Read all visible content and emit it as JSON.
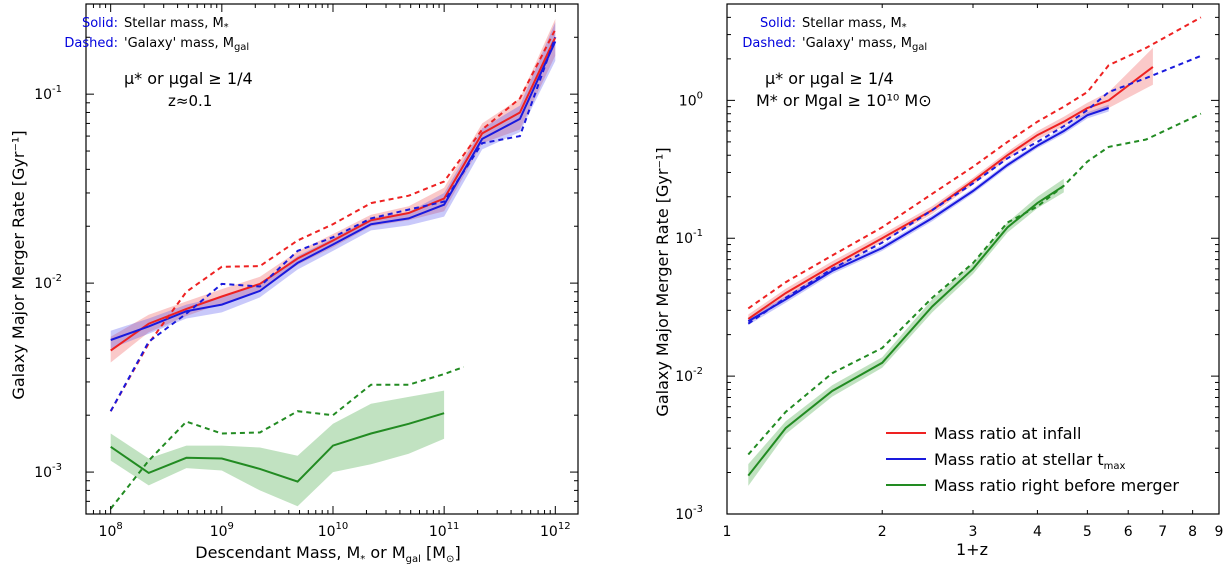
{
  "chart_data": [
    {
      "type": "line",
      "xscale": "log",
      "yscale": "log",
      "xlim": [
        60000000.0,
        1600000000000.0
      ],
      "ylim": [
        0.0006,
        0.3
      ],
      "xlabel_text": "Descendant Mass, M",
      "xlabel_parts": [
        "*",
        " or M",
        "gal",
        " [M",
        "⊙",
        "]"
      ],
      "ylabel": "Galaxy Major Merger Rate [Gyr⁻¹]",
      "x_ticks": [
        {
          "base": "10",
          "exp": "8",
          "v": 100000000.0
        },
        {
          "base": "10",
          "exp": "9",
          "v": 1000000000.0
        },
        {
          "base": "10",
          "exp": "10",
          "v": 10000000000.0
        },
        {
          "base": "10",
          "exp": "11",
          "v": 100000000000.0
        },
        {
          "base": "10",
          "exp": "12",
          "v": 1000000000000.0
        }
      ],
      "y_ticks": [
        {
          "base": "10",
          "exp": "-3",
          "v": 0.001
        },
        {
          "base": "10",
          "exp": "-2",
          "v": 0.01
        },
        {
          "base": "10",
          "exp": "-1",
          "v": 0.1
        }
      ],
      "annotations": {
        "solid_key": "Solid:",
        "solid_text": "Stellar mass, M",
        "solid_sub": "*",
        "dashed_key": "Dashed:",
        "dashed_text": "'Galaxy' mass, M",
        "dashed_sub": "gal",
        "cond_line1": "μ* or μgal ≥ 1/4",
        "cond_line2": "z≈0.1"
      },
      "series": [
        {
          "color": "red",
          "style": "solid",
          "x": [
            100000000.0,
            220000000.0,
            480000000.0,
            1000000000.0,
            2200000000.0,
            4800000000.0,
            10000000000.0,
            22000000000.0,
            48000000000.0,
            100000000000.0,
            220000000000.0,
            480000000000.0,
            1000000000000.0
          ],
          "y": [
            0.0044,
            0.0061,
            0.0073,
            0.0085,
            0.0099,
            0.0135,
            0.0168,
            0.0215,
            0.0235,
            0.028,
            0.062,
            0.08,
            0.2
          ],
          "band_low": [
            0.0038,
            0.0055,
            0.0067,
            0.0078,
            0.0091,
            0.0125,
            0.0155,
            0.02,
            0.0215,
            0.024,
            0.055,
            0.065,
            0.16
          ],
          "band_high": [
            0.0052,
            0.0068,
            0.008,
            0.0093,
            0.0108,
            0.0147,
            0.0182,
            0.023,
            0.0255,
            0.032,
            0.07,
            0.095,
            0.25
          ]
        },
        {
          "color": "blue",
          "style": "solid",
          "x": [
            100000000.0,
            220000000.0,
            480000000.0,
            1000000000.0,
            2200000000.0,
            4800000000.0,
            10000000000.0,
            22000000000.0,
            48000000000.0,
            100000000000.0,
            220000000000.0,
            480000000000.0,
            1000000000000.0
          ],
          "y": [
            0.005,
            0.0059,
            0.0071,
            0.0077,
            0.0091,
            0.0128,
            0.016,
            0.0205,
            0.022,
            0.026,
            0.058,
            0.074,
            0.19
          ],
          "band_low": [
            0.0045,
            0.0054,
            0.0065,
            0.007,
            0.0084,
            0.0118,
            0.0148,
            0.019,
            0.0202,
            0.0225,
            0.051,
            0.063,
            0.15
          ],
          "band_high": [
            0.0056,
            0.0065,
            0.0077,
            0.0085,
            0.0099,
            0.0139,
            0.0173,
            0.0221,
            0.0238,
            0.03,
            0.066,
            0.087,
            0.24
          ]
        },
        {
          "color": "red",
          "style": "dashed",
          "x": [
            100000000.0,
            220000000.0,
            480000000.0,
            1000000000.0,
            2200000000.0,
            4800000000.0,
            10000000000.0,
            22000000000.0,
            48000000000.0,
            100000000000.0,
            220000000000.0,
            480000000000.0,
            1000000000000.0
          ],
          "y": [
            0.0021,
            0.0048,
            0.009,
            0.0122,
            0.0123,
            0.0168,
            0.0205,
            0.0265,
            0.029,
            0.0345,
            0.065,
            0.095,
            0.22
          ]
        },
        {
          "color": "blue",
          "style": "dashed",
          "x": [
            100000000.0,
            220000000.0,
            480000000.0,
            1000000000.0,
            2200000000.0,
            4800000000.0,
            10000000000.0,
            22000000000.0,
            48000000000.0,
            100000000000.0,
            220000000000.0,
            480000000000.0,
            1000000000000.0
          ],
          "y": [
            0.0021,
            0.0049,
            0.0069,
            0.0099,
            0.0096,
            0.0148,
            0.0175,
            0.022,
            0.0245,
            0.027,
            0.055,
            0.06,
            0.2
          ]
        },
        {
          "color": "green",
          "style": "solid",
          "x": [
            100000000.0,
            220000000.0,
            480000000.0,
            1000000000.0,
            2200000000.0,
            4800000000.0,
            10000000000.0,
            22000000000.0,
            48000000000.0,
            100000000000.0
          ],
          "y": [
            0.00136,
            0.00099,
            0.00119,
            0.00118,
            0.00104,
            0.00089,
            0.00138,
            0.0016,
            0.0018,
            0.00205
          ],
          "band_low": [
            0.00115,
            0.00085,
            0.00105,
            0.00102,
            0.0008,
            0.00066,
            0.001,
            0.0011,
            0.00125,
            0.0015
          ],
          "band_high": [
            0.0016,
            0.00118,
            0.00138,
            0.00138,
            0.00135,
            0.00122,
            0.0018,
            0.0023,
            0.0025,
            0.0027
          ]
        },
        {
          "color": "green",
          "style": "dashed",
          "x": [
            100000000.0,
            220000000.0,
            480000000.0,
            1000000000.0,
            2200000000.0,
            4800000000.0,
            10000000000.0,
            22000000000.0,
            48000000000.0,
            100000000000.0,
            150000000000.0
          ],
          "y": [
            0.00064,
            0.00115,
            0.00185,
            0.0016,
            0.00162,
            0.0021,
            0.002,
            0.0029,
            0.0029,
            0.0033,
            0.0036
          ]
        }
      ]
    },
    {
      "type": "line",
      "xscale": "log",
      "yscale": "log",
      "xlim": [
        1,
        9
      ],
      "ylim": [
        0.001,
        5
      ],
      "xlabel": "1+z",
      "ylabel": "Galaxy Major Merger Rate [Gyr⁻¹]",
      "x_ticks": [
        {
          "label": "1",
          "v": 1
        },
        {
          "label": "2",
          "v": 2
        },
        {
          "label": "3",
          "v": 3
        },
        {
          "label": "4",
          "v": 4
        },
        {
          "label": "5",
          "v": 5
        },
        {
          "label": "6",
          "v": 6
        },
        {
          "label": "7",
          "v": 7
        },
        {
          "label": "8",
          "v": 8
        },
        {
          "label": "9",
          "v": 9
        }
      ],
      "y_ticks": [
        {
          "base": "10",
          "exp": "-3",
          "v": 0.001
        },
        {
          "base": "10",
          "exp": "-2",
          "v": 0.01
        },
        {
          "base": "10",
          "exp": "-1",
          "v": 0.1
        },
        {
          "base": "10",
          "exp": "0",
          "v": 1
        }
      ],
      "annotations": {
        "solid_key": "Solid:",
        "solid_text": "Stellar mass, M",
        "solid_sub": "*",
        "dashed_key": "Dashed:",
        "dashed_text": "'Galaxy' mass, M",
        "dashed_sub": "gal",
        "cond_line1": "μ* or μgal ≥ 1/4",
        "cond_line2": "M* or Mgal ≥ 10¹⁰ M⊙"
      },
      "legend": [
        {
          "label": "Mass ratio at infall",
          "color": "red"
        },
        {
          "label": "Mass ratio at stellar t",
          "sub": "max",
          "color": "blue"
        },
        {
          "label": "Mass ratio right before merger",
          "color": "green"
        }
      ],
      "legend_position": "lower-right",
      "series": [
        {
          "color": "red",
          "style": "solid",
          "x": [
            1.1,
            1.3,
            1.6,
            2.0,
            2.5,
            3.0,
            3.5,
            4.0,
            4.5,
            5.0,
            5.5,
            6.7
          ],
          "y": [
            0.026,
            0.04,
            0.063,
            0.1,
            0.16,
            0.26,
            0.4,
            0.56,
            0.7,
            0.88,
            1.0,
            1.75
          ],
          "band_low": [
            0.024,
            0.037,
            0.058,
            0.094,
            0.15,
            0.245,
            0.375,
            0.52,
            0.65,
            0.8,
            0.88,
            1.3
          ],
          "band_high": [
            0.028,
            0.043,
            0.068,
            0.107,
            0.171,
            0.275,
            0.425,
            0.6,
            0.76,
            0.96,
            1.15,
            2.4
          ]
        },
        {
          "color": "blue",
          "style": "solid",
          "x": [
            1.1,
            1.3,
            1.6,
            2.0,
            2.5,
            3.0,
            3.5,
            4.0,
            4.5,
            5.0,
            5.5
          ],
          "y": [
            0.025,
            0.036,
            0.058,
            0.085,
            0.14,
            0.22,
            0.34,
            0.47,
            0.6,
            0.78,
            0.88
          ],
          "band_low": [
            0.0235,
            0.034,
            0.055,
            0.081,
            0.133,
            0.21,
            0.325,
            0.45,
            0.57,
            0.74,
            0.83
          ],
          "band_high": [
            0.0265,
            0.038,
            0.061,
            0.089,
            0.147,
            0.23,
            0.355,
            0.49,
            0.63,
            0.82,
            0.93
          ]
        },
        {
          "color": "red",
          "style": "dashed",
          "x": [
            1.1,
            1.3,
            1.6,
            2.0,
            2.5,
            3.0,
            3.5,
            4.0,
            4.5,
            5.0,
            5.5,
            6.5,
            8.3
          ],
          "y": [
            0.031,
            0.048,
            0.075,
            0.12,
            0.21,
            0.33,
            0.5,
            0.7,
            0.9,
            1.15,
            1.8,
            2.4,
            4.0
          ]
        },
        {
          "color": "blue",
          "style": "dashed",
          "x": [
            1.1,
            1.3,
            1.6,
            2.0,
            2.5,
            3.0,
            3.5,
            4.0,
            4.5,
            5.0,
            5.5,
            6.5,
            8.3
          ],
          "y": [
            0.024,
            0.037,
            0.06,
            0.093,
            0.16,
            0.25,
            0.38,
            0.5,
            0.65,
            0.85,
            1.15,
            1.45,
            2.1
          ]
        },
        {
          "color": "green",
          "style": "solid",
          "x": [
            1.1,
            1.3,
            1.6,
            2.0,
            2.5,
            3.0,
            3.5,
            4.0,
            4.5
          ],
          "y": [
            0.0019,
            0.0042,
            0.0078,
            0.0125,
            0.032,
            0.06,
            0.12,
            0.18,
            0.24
          ],
          "band_low": [
            0.0016,
            0.0038,
            0.0071,
            0.0115,
            0.029,
            0.055,
            0.11,
            0.165,
            0.215
          ],
          "band_high": [
            0.0023,
            0.0047,
            0.0086,
            0.0137,
            0.036,
            0.066,
            0.13,
            0.2,
            0.27
          ]
        },
        {
          "color": "green",
          "style": "dashed",
          "x": [
            1.1,
            1.3,
            1.6,
            2.0,
            2.5,
            3.0,
            3.5,
            4.0,
            4.5,
            5.0,
            5.5,
            6.5,
            8.3
          ],
          "y": [
            0.0027,
            0.0055,
            0.0105,
            0.016,
            0.037,
            0.066,
            0.13,
            0.17,
            0.24,
            0.36,
            0.46,
            0.52,
            0.8
          ]
        }
      ]
    }
  ]
}
